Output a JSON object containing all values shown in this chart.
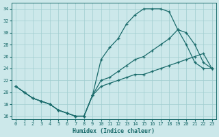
{
  "xlabel": "Humidex (Indice chaleur)",
  "xlim": [
    -0.5,
    23.5
  ],
  "ylim": [
    15.5,
    35.0
  ],
  "yticks": [
    16,
    18,
    20,
    22,
    24,
    26,
    28,
    30,
    32,
    34
  ],
  "xticks": [
    0,
    1,
    2,
    3,
    4,
    5,
    6,
    7,
    8,
    9,
    10,
    11,
    12,
    13,
    14,
    15,
    16,
    17,
    18,
    19,
    20,
    21,
    22,
    23
  ],
  "bg_color": "#cce8ea",
  "line_color": "#1a6b6b",
  "grid_color": "#a0cdd0",
  "line1_x": [
    0,
    1,
    2,
    3,
    4,
    5,
    6,
    7,
    8,
    9,
    10,
    11,
    12,
    13,
    14,
    15,
    16,
    17,
    18,
    19,
    20,
    21,
    22,
    23
  ],
  "line1_y": [
    21.0,
    20.0,
    19.0,
    18.5,
    18.0,
    17.0,
    16.5,
    16.0,
    16.0,
    19.5,
    25.5,
    27.5,
    29.0,
    31.5,
    33.0,
    34.0,
    34.0,
    34.0,
    33.5,
    30.5,
    28.0,
    25.0,
    24.0,
    24.0
  ],
  "line2_x": [
    0,
    1,
    2,
    3,
    4,
    5,
    6,
    7,
    8,
    9,
    10,
    11,
    12,
    13,
    14,
    15,
    16,
    17,
    18,
    19,
    20,
    21,
    22,
    23
  ],
  "line2_y": [
    21.0,
    20.0,
    19.0,
    18.5,
    18.0,
    17.0,
    16.5,
    16.0,
    16.0,
    19.5,
    22.0,
    22.5,
    23.5,
    24.5,
    25.5,
    26.0,
    27.0,
    28.0,
    29.0,
    30.5,
    30.0,
    28.0,
    25.0,
    24.0
  ],
  "line3_x": [
    0,
    1,
    2,
    3,
    4,
    5,
    6,
    7,
    8,
    9,
    10,
    11,
    12,
    13,
    14,
    15,
    16,
    17,
    18,
    19,
    20,
    21,
    22,
    23
  ],
  "line3_y": [
    21.0,
    20.0,
    19.0,
    18.5,
    18.0,
    17.0,
    16.5,
    16.0,
    16.0,
    19.5,
    21.0,
    21.5,
    22.0,
    22.5,
    23.0,
    23.0,
    23.5,
    24.0,
    24.5,
    25.0,
    25.5,
    26.0,
    26.5,
    24.0
  ]
}
